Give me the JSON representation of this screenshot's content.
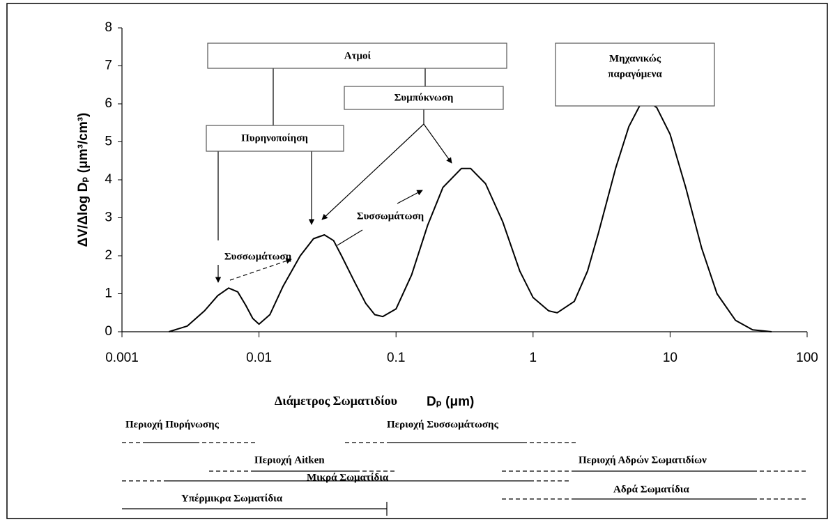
{
  "chart_data": {
    "type": "line",
    "x_label": "Διάμετρος Σωματιδίου",
    "x_unit_label": "Dₚ (μm)",
    "y_label": "ΔV/Δlog Dₚ (μm³/cm³)",
    "x_scale": "log",
    "xlim": [
      0.001,
      100
    ],
    "xticks": [
      0.001,
      0.01,
      0.1,
      1,
      10,
      100
    ],
    "ylim": [
      0,
      8
    ],
    "yticks": [
      0,
      1,
      2,
      3,
      4,
      5,
      6,
      7,
      8
    ],
    "series": [
      {
        "color": "#000000",
        "x": [
          0.0022,
          0.003,
          0.004,
          0.005,
          0.006,
          0.007,
          0.008,
          0.009,
          0.01,
          0.012,
          0.015,
          0.02,
          0.025,
          0.03,
          0.035,
          0.04,
          0.05,
          0.06,
          0.07,
          0.08,
          0.1,
          0.13,
          0.17,
          0.22,
          0.3,
          0.35,
          0.45,
          0.6,
          0.8,
          1,
          1.3,
          1.5,
          2,
          2.5,
          3,
          4,
          5,
          6,
          7,
          8,
          10,
          13,
          17,
          22,
          30,
          40,
          55
        ],
        "values": [
          0,
          0.15,
          0.55,
          0.95,
          1.15,
          1.05,
          0.7,
          0.35,
          0.2,
          0.45,
          1.2,
          2.0,
          2.45,
          2.55,
          2.4,
          2.0,
          1.3,
          0.75,
          0.45,
          0.4,
          0.6,
          1.5,
          2.8,
          3.8,
          4.3,
          4.3,
          3.9,
          2.9,
          1.6,
          0.9,
          0.55,
          0.5,
          0.8,
          1.6,
          2.6,
          4.3,
          5.4,
          5.95,
          6.05,
          5.9,
          5.2,
          3.8,
          2.2,
          1.0,
          0.3,
          0.05,
          0
        ]
      }
    ],
    "annotations": {
      "vapors": "Ατμοί",
      "condensation": "Συμπύκνωση",
      "nucleation": "Πυρηνοποίηση",
      "mechanical": [
        "Μηχανικώς",
        "παραγόμενα"
      ],
      "coagulation_1": "Συσσωμάτωση",
      "coagulation_2": "Συσσωμάτωση"
    },
    "ranges": {
      "nucleation_range": "Περιοχή Πυρήνωσης",
      "accumulation_range": "Περιοχή Συσσωμάτωσης",
      "aitken_range": "Περιοχή Aitken",
      "coarse_range": "Περιοχή Αδρών Σωματιδίων",
      "fine": "Μικρά Σωματίδια",
      "coarse": "Αδρά Σωματίδια",
      "ultrafine": "Υπέρμικρα Σωματίδια"
    }
  }
}
